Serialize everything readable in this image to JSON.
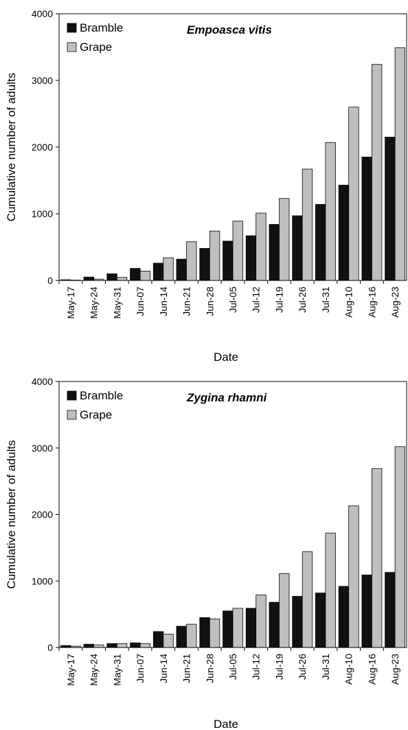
{
  "chart_data": [
    {
      "type": "bar",
      "title": "Empoasca vitis",
      "xlabel": "Date",
      "ylabel": "Cumulative number of adults",
      "ylim": [
        0,
        4000
      ],
      "yticks": [
        0,
        1000,
        2000,
        3000,
        4000
      ],
      "legend_position": "top-left",
      "grid": false,
      "categories": [
        "May-17",
        "May-24",
        "May-31",
        "Jun-07",
        "Jun-14",
        "Jun-21",
        "Jun-28",
        "Jul-05",
        "Jul-12",
        "Jul-19",
        "Jul-26",
        "Jul-31",
        "Aug-10",
        "Aug-16",
        "Aug-23"
      ],
      "series": [
        {
          "name": "Bramble",
          "color": "#111111",
          "values": [
            10,
            50,
            100,
            180,
            260,
            320,
            480,
            590,
            670,
            840,
            970,
            1140,
            1430,
            1850,
            2150
          ]
        },
        {
          "name": "Grape",
          "color": "#c0c0c0",
          "values": [
            5,
            20,
            45,
            140,
            340,
            580,
            740,
            890,
            1010,
            1230,
            1670,
            2070,
            2600,
            3240,
            3490
          ]
        }
      ]
    },
    {
      "type": "bar",
      "title": "Zygina rhamni",
      "xlabel": "Date",
      "ylabel": "Cumulative number of adults",
      "ylim": [
        0,
        4000
      ],
      "yticks": [
        0,
        1000,
        2000,
        3000,
        4000
      ],
      "legend_position": "top-left",
      "grid": false,
      "categories": [
        "May-17",
        "May-24",
        "May-31",
        "Jun-07",
        "Jun-14",
        "Jun-21",
        "Jun-28",
        "Jul-05",
        "Jul-12",
        "Jul-19",
        "Jul-26",
        "Jul-31",
        "Aug-10",
        "Aug-16",
        "Aug-23"
      ],
      "series": [
        {
          "name": "Bramble",
          "color": "#111111",
          "values": [
            30,
            50,
            60,
            70,
            240,
            320,
            450,
            550,
            590,
            680,
            770,
            820,
            920,
            1090,
            1130
          ]
        },
        {
          "name": "Grape",
          "color": "#c0c0c0",
          "values": [
            20,
            40,
            60,
            60,
            200,
            350,
            430,
            590,
            790,
            1110,
            1440,
            1720,
            2130,
            2690,
            3020
          ]
        }
      ]
    }
  ]
}
